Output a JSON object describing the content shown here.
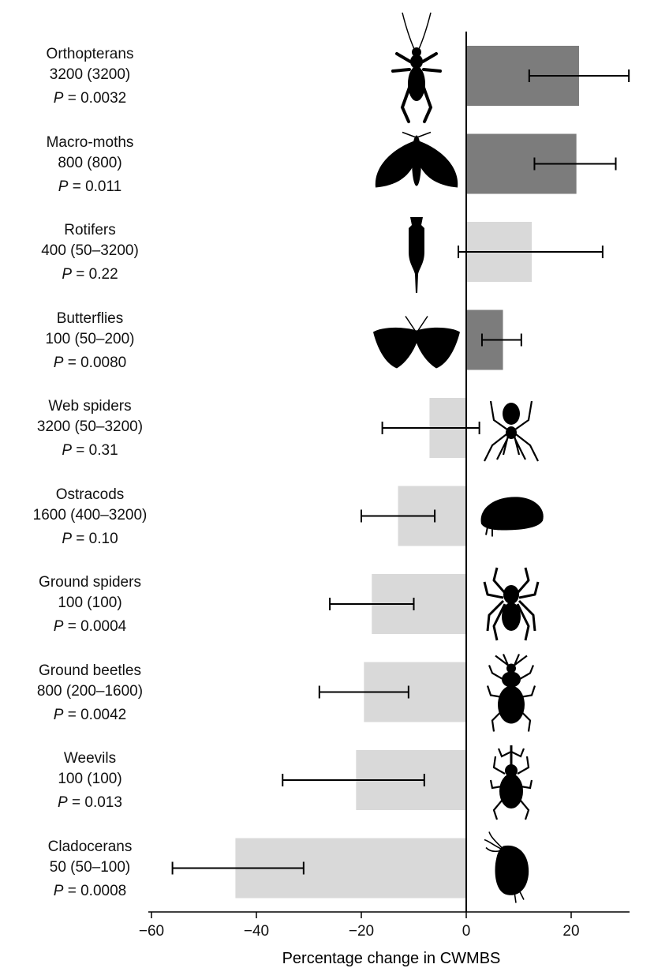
{
  "chart_data": {
    "type": "bar",
    "orientation": "horizontal",
    "xlabel": "Percentage change in CWMBS",
    "xlim": [
      -60,
      31
    ],
    "xticks": [
      -60,
      -40,
      -20,
      0,
      20
    ],
    "xtick_labels": [
      "−60",
      "−40",
      "−20",
      "0",
      "20"
    ],
    "categories": [
      {
        "name": "Orthopterans",
        "sub": "3200 (3200)",
        "p_label": "P",
        "p_value": "= 0.0032",
        "value": 21.5,
        "err_low": 12,
        "err_high": 31,
        "significant": true,
        "icon": "cricket-silhouette-icon",
        "icon_side": "left"
      },
      {
        "name": "Macro-moths",
        "sub": "800 (800)",
        "p_label": "P",
        "p_value": "= 0.011",
        "value": 21,
        "err_low": 13,
        "err_high": 28.5,
        "significant": true,
        "icon": "moth-silhouette-icon",
        "icon_side": "left"
      },
      {
        "name": "Rotifers",
        "sub": "400 (50–3200)",
        "p_label": "P",
        "p_value": "= 0.22",
        "value": 12.5,
        "err_low": -1.5,
        "err_high": 26,
        "significant": false,
        "icon": "rotifer-silhouette-icon",
        "icon_side": "left"
      },
      {
        "name": "Butterflies",
        "sub": "100 (50–200)",
        "p_label": "P",
        "p_value": "= 0.0080",
        "value": 7,
        "err_low": 3,
        "err_high": 10.5,
        "significant": true,
        "icon": "butterfly-silhouette-icon",
        "icon_side": "left"
      },
      {
        "name": "Web spiders",
        "sub": "3200 (50–3200)",
        "p_label": "P",
        "p_value": "= 0.31",
        "value": -7,
        "err_low": -16,
        "err_high": 2.5,
        "significant": false,
        "icon": "web-spider-silhouette-icon",
        "icon_side": "right"
      },
      {
        "name": "Ostracods",
        "sub": "1600 (400–3200)",
        "p_label": "P",
        "p_value": "= 0.10",
        "value": -13,
        "err_low": -20,
        "err_high": -6,
        "significant": false,
        "icon": "ostracod-silhouette-icon",
        "icon_side": "right"
      },
      {
        "name": "Ground spiders",
        "sub": "100 (100)",
        "p_label": "P",
        "p_value": "= 0.0004",
        "value": -18,
        "err_low": -26,
        "err_high": -10,
        "significant": false,
        "icon": "ground-spider-silhouette-icon",
        "icon_side": "right"
      },
      {
        "name": "Ground beetles",
        "sub": "800 (200–1600)",
        "p_label": "P",
        "p_value": "= 0.0042",
        "value": -19.5,
        "err_low": -28,
        "err_high": -11,
        "significant": false,
        "icon": "ground-beetle-silhouette-icon",
        "icon_side": "right"
      },
      {
        "name": "Weevils",
        "sub": "100 (100)",
        "p_label": "P",
        "p_value": "= 0.013",
        "value": -21,
        "err_low": -35,
        "err_high": -8,
        "significant": false,
        "icon": "weevil-silhouette-icon",
        "icon_side": "right"
      },
      {
        "name": "Cladocerans",
        "sub": "50 (50–100)",
        "p_label": "P",
        "p_value": "= 0.0008",
        "value": -44,
        "err_low": -56,
        "err_high": -31,
        "significant": false,
        "icon": "cladoceran-silhouette-icon",
        "icon_side": "right"
      }
    ],
    "colors": {
      "significant_bar": "#7c7c7c",
      "nonsignificant_bar": "#d9d9d9",
      "error_bar": "#000000",
      "silhouette": "#000000"
    },
    "grid": false,
    "legend": "none"
  }
}
